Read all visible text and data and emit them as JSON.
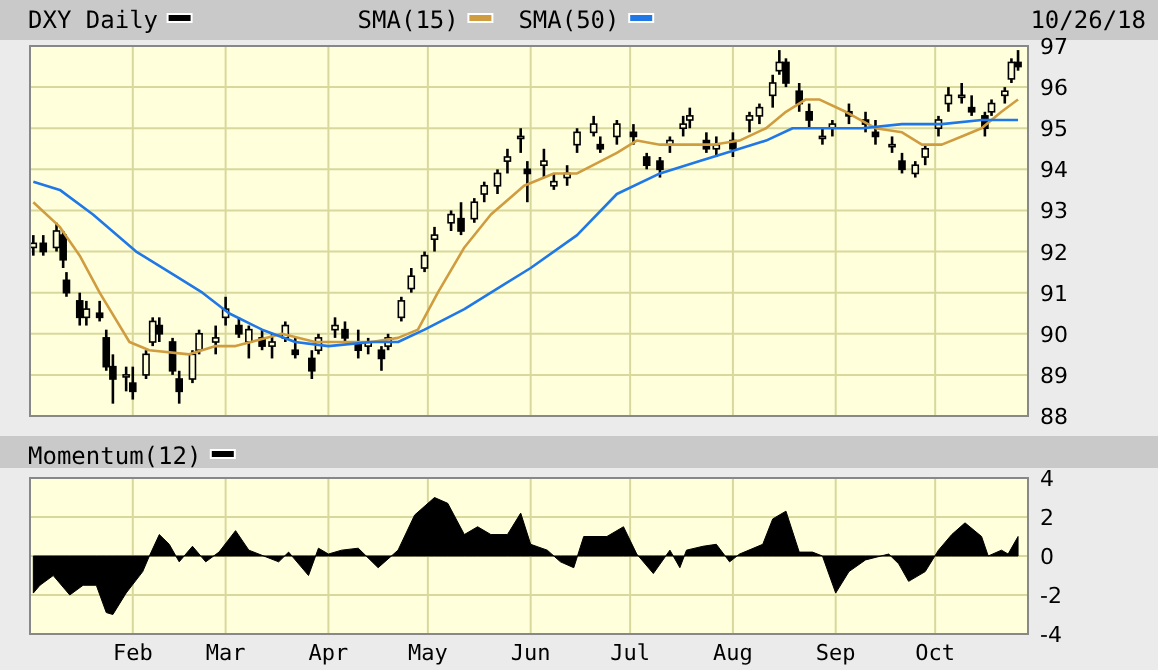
{
  "chart_data": [
    {
      "type": "candlestick",
      "xlim": [
        "--01-01",
        "--10-29"
      ],
      "xticks": [
        {
          "value": "--02-01",
          "label": null
        },
        {
          "value": "--03-01",
          "label": null
        },
        {
          "value": "--04-01",
          "label": null
        },
        {
          "value": "--05-01",
          "label": null
        },
        {
          "value": "--06-01",
          "label": null
        },
        {
          "value": "--07-01",
          "label": null
        },
        {
          "value": "--08-01",
          "label": null
        },
        {
          "value": "--09-01",
          "label": null
        },
        {
          "value": "--10-01",
          "label": null
        }
      ],
      "ylim": [
        88,
        97
      ],
      "yticks": [
        88,
        89,
        90,
        91,
        92,
        93,
        94,
        95,
        96,
        97
      ],
      "grid": true,
      "tick_labels": "y",
      "legend": "top",
      "annotations": [
        "10/26/18"
      ],
      "series": [
        {
          "name": "DXY Daily",
          "color": "#000000",
          "x": [
            "--01-02",
            "--01-05",
            "--01-09",
            "--01-11",
            "--01-12",
            "--01-16",
            "--01-18",
            "--01-22",
            "--01-24",
            "--01-26",
            "--01-30",
            "--02-01",
            "--02-05",
            "--02-07",
            "--02-09",
            "--02-13",
            "--02-15",
            "--02-19",
            "--02-21",
            "--02-26",
            "--03-01",
            "--03-05",
            "--03-08",
            "--03-12",
            "--03-15",
            "--03-19",
            "--03-22",
            "--03-27",
            "--03-29",
            "--04-03",
            "--04-06",
            "--04-10",
            "--04-13",
            "--04-17",
            "--04-19",
            "--04-23",
            "--04-26",
            "--04-30",
            "--05-03",
            "--05-08",
            "--05-11",
            "--05-15",
            "--05-18",
            "--05-22",
            "--05-25",
            "--05-29",
            "--05-31",
            "--06-05",
            "--06-08",
            "--06-12",
            "--06-15",
            "--06-20",
            "--06-22",
            "--06-27",
            "--07-02",
            "--07-06",
            "--07-10",
            "--07-13",
            "--07-17",
            "--07-19",
            "--07-24",
            "--07-27",
            "--08-01",
            "--08-06",
            "--08-09",
            "--08-13",
            "--08-15",
            "--08-17",
            "--08-21",
            "--08-24",
            "--08-28",
            "--08-31",
            "--09-05",
            "--09-10",
            "--09-13",
            "--09-18",
            "--09-21",
            "--09-25",
            "--09-28",
            "--10-02",
            "--10-05",
            "--10-09",
            "--10-12",
            "--10-16",
            "--10-18",
            "--10-22",
            "--10-24",
            "--10-26"
          ],
          "ohlc": [
            [
              92.1,
              92.4,
              91.9,
              92.2
            ],
            [
              92.2,
              92.4,
              91.9,
              92.0
            ],
            [
              92.1,
              92.7,
              92.0,
              92.5
            ],
            [
              92.4,
              92.5,
              91.6,
              91.8
            ],
            [
              91.3,
              91.5,
              90.9,
              91.0
            ],
            [
              90.8,
              91.0,
              90.2,
              90.4
            ],
            [
              90.4,
              90.8,
              90.2,
              90.6
            ],
            [
              90.5,
              90.8,
              90.3,
              90.4
            ],
            [
              89.9,
              90.1,
              89.1,
              89.2
            ],
            [
              89.2,
              89.5,
              88.3,
              88.9
            ],
            [
              89.0,
              89.2,
              88.6,
              89.0
            ],
            [
              88.8,
              89.2,
              88.4,
              88.6
            ],
            [
              89.0,
              89.6,
              88.9,
              89.5
            ],
            [
              89.8,
              90.4,
              89.7,
              90.3
            ],
            [
              90.2,
              90.4,
              89.8,
              90.0
            ],
            [
              89.8,
              89.9,
              89.0,
              89.1
            ],
            [
              88.9,
              89.1,
              88.3,
              88.6
            ],
            [
              88.9,
              89.6,
              88.8,
              89.5
            ],
            [
              89.6,
              90.1,
              89.5,
              90.0
            ],
            [
              89.8,
              90.2,
              89.5,
              89.9
            ],
            [
              90.4,
              90.9,
              90.2,
              90.6
            ],
            [
              90.2,
              90.4,
              89.9,
              90.0
            ],
            [
              89.8,
              90.2,
              89.4,
              90.1
            ],
            [
              89.9,
              90.1,
              89.6,
              89.7
            ],
            [
              89.7,
              90.0,
              89.4,
              89.8
            ],
            [
              89.9,
              90.3,
              89.8,
              90.2
            ],
            [
              89.6,
              89.9,
              89.4,
              89.5
            ],
            [
              89.4,
              89.6,
              88.9,
              89.1
            ],
            [
              89.6,
              90.0,
              89.5,
              89.9
            ],
            [
              90.1,
              90.4,
              89.9,
              90.2
            ],
            [
              90.1,
              90.3,
              89.8,
              89.9
            ],
            [
              89.8,
              90.1,
              89.4,
              89.6
            ],
            [
              89.7,
              89.9,
              89.5,
              89.8
            ],
            [
              89.6,
              89.7,
              89.1,
              89.4
            ],
            [
              89.7,
              90.0,
              89.6,
              89.9
            ],
            [
              90.4,
              90.9,
              90.3,
              90.8
            ],
            [
              91.1,
              91.6,
              91.0,
              91.4
            ],
            [
              91.6,
              92.0,
              91.5,
              91.9
            ],
            [
              92.3,
              92.6,
              92.0,
              92.4
            ],
            [
              92.7,
              93.0,
              92.5,
              92.9
            ],
            [
              92.8,
              93.2,
              92.4,
              92.5
            ],
            [
              92.8,
              93.3,
              92.7,
              93.2
            ],
            [
              93.4,
              93.7,
              93.2,
              93.6
            ],
            [
              93.6,
              94.0,
              93.4,
              93.9
            ],
            [
              94.2,
              94.5,
              93.9,
              94.3
            ],
            [
              94.8,
              95.0,
              94.4,
              94.8
            ],
            [
              94.0,
              94.2,
              93.2,
              93.9
            ],
            [
              94.1,
              94.5,
              93.8,
              94.2
            ],
            [
              93.6,
              93.9,
              93.5,
              93.7
            ],
            [
              93.8,
              94.1,
              93.6,
              93.9
            ],
            [
              94.6,
              95.0,
              94.4,
              94.9
            ],
            [
              94.9,
              95.3,
              94.8,
              95.1
            ],
            [
              94.6,
              94.8,
              94.4,
              94.5
            ],
            [
              94.8,
              95.2,
              94.6,
              95.1
            ],
            [
              94.9,
              95.1,
              94.6,
              94.8
            ],
            [
              94.3,
              94.4,
              94.0,
              94.1
            ],
            [
              94.2,
              94.3,
              93.8,
              94.0
            ],
            [
              94.6,
              94.8,
              94.4,
              94.7
            ],
            [
              95.0,
              95.3,
              94.8,
              95.1
            ],
            [
              95.2,
              95.5,
              95.0,
              95.3
            ],
            [
              94.7,
              94.9,
              94.4,
              94.5
            ],
            [
              94.5,
              94.8,
              94.3,
              94.6
            ],
            [
              94.7,
              94.9,
              94.3,
              94.5
            ],
            [
              95.2,
              95.4,
              94.9,
              95.3
            ],
            [
              95.3,
              95.6,
              95.1,
              95.5
            ],
            [
              95.8,
              96.3,
              95.5,
              96.1
            ],
            [
              96.4,
              96.9,
              96.3,
              96.6
            ],
            [
              96.6,
              96.7,
              96.0,
              96.1
            ],
            [
              95.9,
              96.1,
              95.4,
              95.6
            ],
            [
              95.4,
              95.6,
              95.0,
              95.2
            ],
            [
              94.8,
              95.0,
              94.6,
              94.8
            ],
            [
              95.0,
              95.2,
              94.8,
              95.1
            ],
            [
              95.4,
              95.6,
              95.1,
              95.3
            ],
            [
              95.2,
              95.4,
              94.9,
              95.1
            ],
            [
              94.9,
              95.2,
              94.6,
              94.8
            ],
            [
              94.6,
              94.8,
              94.4,
              94.6
            ],
            [
              94.2,
              94.4,
              93.9,
              94.0
            ],
            [
              93.9,
              94.2,
              93.8,
              94.1
            ],
            [
              94.3,
              94.6,
              94.1,
              94.5
            ],
            [
              95.0,
              95.3,
              94.8,
              95.2
            ],
            [
              95.6,
              96.0,
              95.4,
              95.8
            ],
            [
              95.8,
              96.1,
              95.6,
              95.8
            ],
            [
              95.5,
              95.8,
              95.3,
              95.4
            ],
            [
              95.3,
              95.4,
              94.8,
              95.0
            ],
            [
              95.4,
              95.7,
              95.3,
              95.6
            ],
            [
              95.8,
              96.0,
              95.6,
              95.9
            ],
            [
              96.2,
              96.7,
              96.1,
              96.6
            ],
            [
              96.6,
              96.9,
              96.4,
              96.5
            ]
          ]
        },
        {
          "type": "line",
          "name": "SMA(15)",
          "color": "#d09c40",
          "x": [
            "--01-02",
            "--01-10",
            "--01-16",
            "--01-22",
            "--01-31",
            "--02-06",
            "--02-18",
            "--02-26",
            "--03-04",
            "--03-18",
            "--03-28",
            "--04-05",
            "--04-14",
            "--04-22",
            "--04-28",
            "--05-04",
            "--05-12",
            "--05-20",
            "--05-30",
            "--06-08",
            "--06-15",
            "--06-27",
            "--07-03",
            "--07-10",
            "--07-17",
            "--07-26",
            "--08-03",
            "--08-11",
            "--08-17",
            "--08-23",
            "--08-27",
            "--09-04",
            "--09-13",
            "--09-21",
            "--09-27",
            "--10-03",
            "--10-09",
            "--10-15",
            "--10-21",
            "--10-26"
          ],
          "values": [
            93.2,
            92.6,
            91.9,
            91.0,
            89.8,
            89.6,
            89.5,
            89.7,
            89.7,
            90.0,
            89.8,
            89.8,
            89.8,
            89.9,
            90.1,
            91.0,
            92.1,
            92.9,
            93.6,
            93.9,
            93.9,
            94.4,
            94.7,
            94.6,
            94.6,
            94.6,
            94.7,
            95.0,
            95.4,
            95.7,
            95.7,
            95.4,
            95.0,
            94.9,
            94.6,
            94.6,
            94.8,
            95.0,
            95.4,
            95.7
          ]
        },
        {
          "type": "line",
          "name": "SMA(50)",
          "color": "#1f78e6",
          "x": [
            "--01-02",
            "--01-10",
            "--01-20",
            "--02-02",
            "--02-14",
            "--02-22",
            "--03-02",
            "--03-12",
            "--03-22",
            "--04-01",
            "--04-14",
            "--04-22",
            "--04-30",
            "--05-12",
            "--05-24",
            "--06-01",
            "--06-15",
            "--06-27",
            "--07-10",
            "--07-22",
            "--08-03",
            "--08-11",
            "--08-19",
            "--08-27",
            "--09-09",
            "--09-21",
            "--10-03",
            "--10-15",
            "--10-26"
          ],
          "values": [
            93.7,
            93.5,
            92.9,
            92.0,
            91.4,
            91.0,
            90.5,
            90.1,
            89.8,
            89.7,
            89.8,
            89.8,
            90.1,
            90.6,
            91.2,
            91.6,
            92.4,
            93.4,
            93.9,
            94.2,
            94.5,
            94.7,
            95.0,
            95.0,
            95.0,
            95.1,
            95.1,
            95.2,
            95.2
          ]
        }
      ]
    },
    {
      "type": "area",
      "xlim": [
        "--01-01",
        "--10-29"
      ],
      "xticks": [
        {
          "value": "--02-01",
          "label": "Feb"
        },
        {
          "value": "--03-01",
          "label": "Mar"
        },
        {
          "value": "--04-01",
          "label": "Apr"
        },
        {
          "value": "--05-01",
          "label": "May"
        },
        {
          "value": "--06-01",
          "label": "Jun"
        },
        {
          "value": "--07-01",
          "label": "Jul"
        },
        {
          "value": "--08-01",
          "label": "Aug"
        },
        {
          "value": "--09-01",
          "label": "Sep"
        },
        {
          "value": "--10-01",
          "label": "Oct"
        }
      ],
      "ylim": [
        -4,
        4
      ],
      "yticks": [
        -4,
        -2,
        0,
        2,
        4
      ],
      "grid": true,
      "legend": "top",
      "series": [
        {
          "name": "Momentum(12)",
          "color": "#000000",
          "x": [
            "--01-02",
            "--01-04",
            "--01-08",
            "--01-13",
            "--01-17",
            "--01-21",
            "--01-24",
            "--01-26",
            "--01-30",
            "--02-04",
            "--02-06",
            "--02-09",
            "--02-12",
            "--02-15",
            "--02-19",
            "--02-23",
            "--02-27",
            "--03-04",
            "--03-08",
            "--03-17",
            "--03-20",
            "--03-26",
            "--03-29",
            "--04-01",
            "--04-05",
            "--04-10",
            "--04-16",
            "--04-22",
            "--04-27",
            "--05-03",
            "--05-07",
            "--05-12",
            "--05-16",
            "--05-20",
            "--05-25",
            "--05-29",
            "--06-01",
            "--06-06",
            "--06-10",
            "--06-14",
            "--06-17",
            "--06-24",
            "--06-29",
            "--07-03",
            "--07-08",
            "--07-13",
            "--07-16",
            "--07-18",
            "--07-23",
            "--07-27",
            "--07-31",
            "--08-03",
            "--08-10",
            "--08-13",
            "--08-17",
            "--08-21",
            "--08-25",
            "--08-28",
            "--09-01",
            "--09-05",
            "--09-10",
            "--09-17",
            "--09-20",
            "--09-23",
            "--09-28",
            "--10-02",
            "--10-06",
            "--10-10",
            "--10-15",
            "--10-17",
            "--10-21",
            "--10-23",
            "--10-26"
          ],
          "values": [
            -1.9,
            -1.5,
            -1.0,
            -2.0,
            -1.5,
            -1.5,
            -2.9,
            -3.0,
            -1.9,
            -0.8,
            0,
            1.1,
            0.6,
            -0.3,
            0.5,
            -0.3,
            0.2,
            1.3,
            0.3,
            -0.3,
            0.2,
            -1.0,
            0.4,
            0.1,
            0.3,
            0.4,
            -0.6,
            0.3,
            2.1,
            3.0,
            2.7,
            1.1,
            1.5,
            1.1,
            1.1,
            2.2,
            0.6,
            0.3,
            -0.3,
            -0.6,
            1.0,
            1.0,
            1.5,
            0.1,
            -0.9,
            0.3,
            -0.6,
            0.3,
            0.5,
            0.6,
            -0.3,
            0.1,
            0.6,
            1.9,
            2.3,
            0.2,
            0.2,
            0,
            -1.9,
            -0.8,
            -0.2,
            0.1,
            -0.4,
            -1.3,
            -0.8,
            0.3,
            1.1,
            1.7,
            1.0,
            0,
            0.3,
            0.1,
            1.0
          ]
        }
      ]
    }
  ]
}
